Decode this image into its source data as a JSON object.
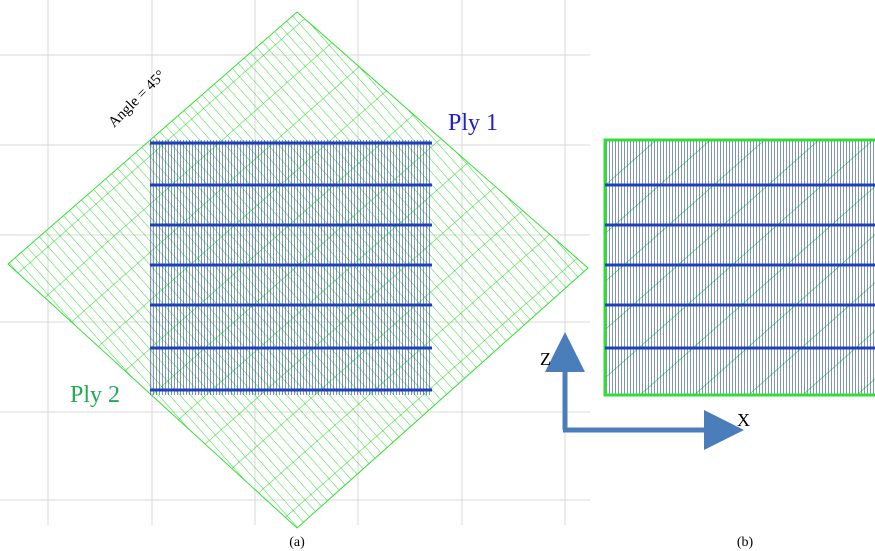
{
  "labels": {
    "angle": "Angle = 45°",
    "ply1": "Ply 1",
    "ply2": "Ply 2",
    "z_axis": "Z",
    "x_axis": "X"
  },
  "captions": [
    "(a)",
    "(b)"
  ]
}
